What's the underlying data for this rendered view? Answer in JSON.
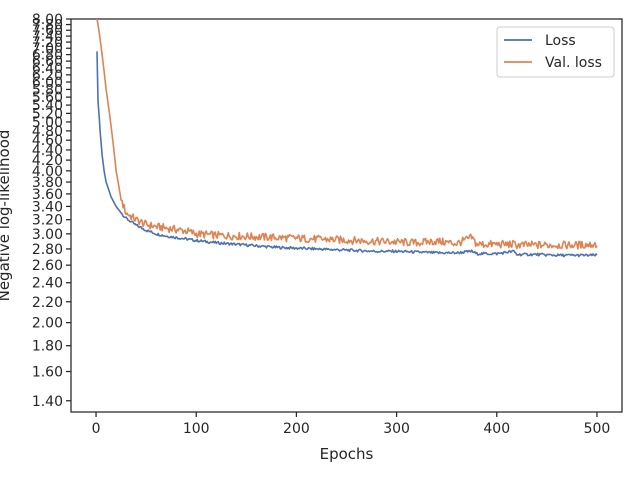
{
  "chart_data": {
    "type": "line",
    "xlabel": "Epochs",
    "ylabel": "Negative log-likelihood",
    "xlim": [
      -25,
      525
    ],
    "ylim": [
      1.33,
      8.0
    ],
    "y_scale": "log",
    "grid": false,
    "legend_position": "top-right",
    "x_ticks": [
      0,
      100,
      200,
      300,
      400,
      500
    ],
    "x_tick_labels": [
      "0",
      "100",
      "200",
      "300",
      "400",
      "500"
    ],
    "y_ticks": [
      1.4,
      1.6,
      1.8,
      2.0,
      2.2,
      2.4,
      2.6,
      2.8,
      3.0,
      3.2,
      3.4,
      3.6,
      3.8,
      4.0,
      4.2,
      4.4,
      4.6,
      4.8,
      5.0,
      5.2,
      5.4,
      5.6,
      5.8,
      6.0,
      6.2,
      6.4,
      6.6,
      6.8,
      7.0,
      7.2,
      7.4,
      7.6,
      7.8,
      8.0
    ],
    "y_tick_labels": [
      "1.40",
      "1.60",
      "1.80",
      "2.00",
      "2.20",
      "2.40",
      "2.60",
      "2.80",
      "3.00",
      "3.20",
      "3.40",
      "3.60",
      "3.80",
      "4.00",
      "4.20",
      "4.40",
      "4.60",
      "4.80",
      "5.00",
      "5.20",
      "5.40",
      "5.60",
      "5.80",
      "6.00",
      "6.20",
      "6.40",
      "6.60",
      "6.80",
      "7.00",
      "7.20",
      "7.40",
      "7.60",
      "7.80",
      "8.00"
    ],
    "x": [
      1,
      2,
      4,
      6,
      8,
      10,
      15,
      20,
      25,
      30,
      40,
      50,
      60,
      70,
      80,
      90,
      100,
      120,
      140,
      160,
      180,
      200,
      220,
      240,
      260,
      280,
      300,
      320,
      340,
      360,
      375,
      380,
      400,
      417,
      420,
      440,
      460,
      480,
      500
    ],
    "series": [
      {
        "name": "Loss",
        "color": "#4c72b0",
        "values": [
          6.9,
          5.5,
          4.8,
          4.3,
          4.0,
          3.8,
          3.55,
          3.4,
          3.3,
          3.22,
          3.12,
          3.05,
          3.0,
          2.97,
          2.95,
          2.93,
          2.91,
          2.88,
          2.86,
          2.84,
          2.82,
          2.81,
          2.8,
          2.79,
          2.78,
          2.77,
          2.77,
          2.76,
          2.75,
          2.75,
          2.77,
          2.74,
          2.74,
          2.77,
          2.73,
          2.73,
          2.72,
          2.72,
          2.72
        ]
      },
      {
        "name": "Val. loss",
        "color": "#dd8452",
        "values": [
          8.0,
          7.8,
          7.3,
          6.8,
          6.3,
          5.8,
          4.9,
          4.0,
          3.5,
          3.3,
          3.2,
          3.13,
          3.1,
          3.08,
          3.06,
          3.04,
          3.0,
          2.98,
          2.97,
          2.96,
          2.95,
          2.94,
          2.93,
          2.92,
          2.91,
          2.9,
          2.89,
          2.88,
          2.9,
          2.87,
          2.95,
          2.86,
          2.86,
          2.86,
          2.85,
          2.85,
          2.85,
          2.85,
          2.86
        ]
      }
    ]
  }
}
